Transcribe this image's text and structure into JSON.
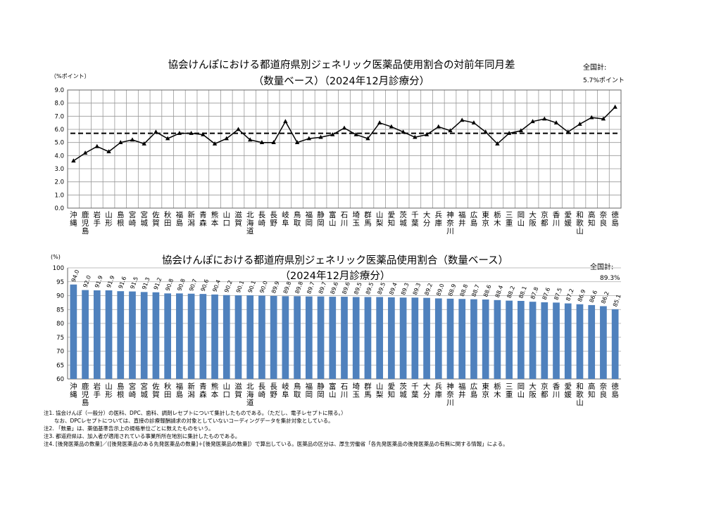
{
  "chart_data": [
    {
      "type": "line",
      "title": "協会けんぽにおける都道府県別ジェネリック医薬品使用割合の対前年同月差",
      "subtitle": "（数量ベース）（2024年12月診療分）",
      "ylabel": "（%ポイント）",
      "national_label": "全国計:",
      "national_value_text": "5.7%ポイント",
      "national_value": 5.7,
      "ylim": [
        0,
        9
      ],
      "yticks": [
        "0.0",
        "1.0",
        "2.0",
        "3.0",
        "4.0",
        "5.0",
        "6.0",
        "7.0",
        "8.0",
        "9.0"
      ],
      "grid": true,
      "categories": [
        "沖縄",
        "鹿児島",
        "岩手",
        "山形",
        "島根",
        "宮崎",
        "宮城",
        "佐賀",
        "秋田",
        "福島",
        "新潟",
        "青森",
        "熊本",
        "山口",
        "滋賀",
        "北海道",
        "長崎",
        "長野",
        "岐阜",
        "鳥取",
        "福岡",
        "静岡",
        "富山",
        "石川",
        "埼玉",
        "群馬",
        "山梨",
        "愛知",
        "茨城",
        "千葉",
        "大分",
        "兵庫",
        "神奈川",
        "福井",
        "広島",
        "東京",
        "栃木",
        "三重",
        "岡山",
        "大阪",
        "京都",
        "香川",
        "愛媛",
        "和歌山",
        "高知",
        "奈良",
        "徳島"
      ],
      "values": [
        3.6,
        4.2,
        4.7,
        4.3,
        5.0,
        5.2,
        4.9,
        5.8,
        5.3,
        5.7,
        5.7,
        5.6,
        4.9,
        5.3,
        6.0,
        5.2,
        5.0,
        5.0,
        6.6,
        5.0,
        5.3,
        5.4,
        5.6,
        6.1,
        5.6,
        5.3,
        6.5,
        6.2,
        5.8,
        5.4,
        5.6,
        6.2,
        5.9,
        6.7,
        6.5,
        5.8,
        4.9,
        5.7,
        5.9,
        6.6,
        6.8,
        6.5,
        5.8,
        6.4,
        6.9,
        6.8,
        7.7
      ]
    },
    {
      "type": "bar",
      "title": "協会けんぽにおける都道府県別ジェネリック医薬品使用割合（数量ベース）",
      "subtitle": "（2024年12月診療分）",
      "ylabel": "(%)",
      "national_label": "全国計:",
      "national_value_text": "89.3%",
      "national_value": 89.3,
      "ylim": [
        60,
        100
      ],
      "yticks": [
        "60",
        "65",
        "70",
        "75",
        "80",
        "85",
        "90",
        "95",
        "100"
      ],
      "grid": true,
      "color": "#4f81bd",
      "categories": [
        "沖縄",
        "鹿児島",
        "岩手",
        "山形",
        "島根",
        "宮崎",
        "宮城",
        "佐賀",
        "秋田",
        "福島",
        "新潟",
        "青森",
        "熊本",
        "山口",
        "滋賀",
        "北海道",
        "長崎",
        "長野",
        "岐阜",
        "鳥取",
        "福岡",
        "静岡",
        "富山",
        "石川",
        "埼玉",
        "群馬",
        "山梨",
        "愛知",
        "茨城",
        "千葉",
        "大分",
        "兵庫",
        "神奈川",
        "福井",
        "広島",
        "東京",
        "栃木",
        "三重",
        "岡山",
        "大阪",
        "京都",
        "香川",
        "愛媛",
        "和歌山",
        "高知",
        "奈良",
        "徳島"
      ],
      "values": [
        94.0,
        92.0,
        91.9,
        91.9,
        91.6,
        91.5,
        91.3,
        91.2,
        90.8,
        90.8,
        90.7,
        90.6,
        90.4,
        90.2,
        90.1,
        90.1,
        90.0,
        89.9,
        89.8,
        89.8,
        89.7,
        89.7,
        89.6,
        89.6,
        89.5,
        89.5,
        89.5,
        89.4,
        89.3,
        89.3,
        89.2,
        89.0,
        88.9,
        88.8,
        88.7,
        88.6,
        88.4,
        88.2,
        88.1,
        87.8,
        87.6,
        87.5,
        87.2,
        86.9,
        86.6,
        86.2,
        85.1
      ]
    }
  ],
  "notes": [
    "注1. 協会けんぽ（一般分）の医科、DPC、歯科、調剤レセプトについて集計したものである。（ただし、電子レセプトに限る。）",
    "　　なお、DPCレセプトについては、直接の診療報酬請求の対象としていないコーディングデータを集計対象としている。",
    "注2. 「数量」は、薬価基準告示上の規格単位ごとに数えたものをいう。",
    "注3. 都道府県は、加入者が適用されている事業所所在地別に集計したものである。",
    "注4. [後発医薬品の数量]／([後発医薬品のある先発医薬品の数量]＋[後発医薬品の数量]）で算出している。医薬品の区分は、厚生労働省「各先発医薬品の後発医薬品の有無に関する情報」による。"
  ]
}
